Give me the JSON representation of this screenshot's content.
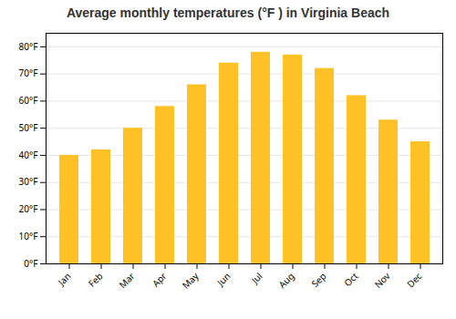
{
  "chart_data": {
    "type": "bar",
    "title": "Average monthly temperatures (°F ) in Virginia Beach",
    "categories": [
      "Jan",
      "Feb",
      "Mar",
      "Apr",
      "May",
      "Jun",
      "Jul",
      "Aug",
      "Sep",
      "Oct",
      "Nov",
      "Dec"
    ],
    "values": [
      40,
      42,
      50,
      58,
      66,
      74,
      78,
      77,
      72,
      62,
      53,
      45
    ],
    "color": "#FFC125",
    "ylim": [
      0,
      85
    ],
    "yticks": [
      {
        "value": 0,
        "label": "0°F"
      },
      {
        "value": 10,
        "label": "10°F"
      },
      {
        "value": 20,
        "label": "20°F"
      },
      {
        "value": 30,
        "label": "30°F"
      },
      {
        "value": 40,
        "label": "40°F"
      },
      {
        "value": 50,
        "label": "50°F"
      },
      {
        "value": 60,
        "label": "60°F"
      },
      {
        "value": 70,
        "label": "70°F"
      },
      {
        "value": 80,
        "label": "80°F"
      }
    ],
    "grid": true
  }
}
